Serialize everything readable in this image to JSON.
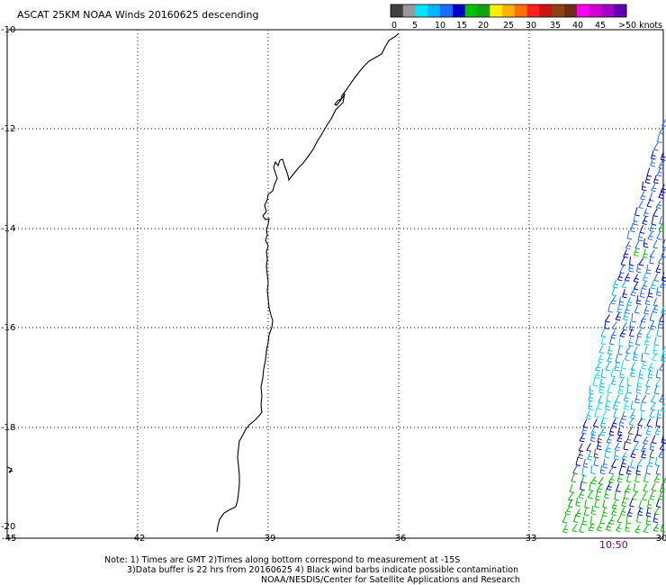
{
  "title": "ASCAT 25KM NOAA Winds 20160625 descending",
  "colorbar": {
    "colors": [
      "#404040",
      "#999999",
      "#00e5ff",
      "#00b4ff",
      "#1f6aff",
      "#0000c8",
      "#00c000",
      "#14a014",
      "#ffee00",
      "#ffb000",
      "#ff7000",
      "#ff2020",
      "#c81414",
      "#8b4513",
      "#6b2e1a",
      "#ff00ff",
      "#d400d4",
      "#a000c8",
      "#6000b0"
    ],
    "labels": [
      "0",
      "5",
      "10",
      "15",
      "20",
      "25",
      "30",
      "35",
      "40",
      "45",
      ">50 knots"
    ]
  },
  "axes": {
    "lat_labels": [
      "-10",
      "-12",
      "-14",
      "-16",
      "-18",
      "-20"
    ],
    "lon_labels": [
      "-45",
      "-42",
      "-39",
      "-36",
      "-33",
      "-30"
    ],
    "lon_range": [
      -45,
      -30
    ],
    "lat_range": [
      -10,
      -20
    ]
  },
  "swath_time": "10:50",
  "notes": {
    "line1": "Note: 1) Times are GMT 2)Times along bottom correspond to measurement at -15S",
    "line2": "3)Data buffer is 22 hrs from 20160625 4) Black wind barbs indicate possible contamination",
    "line3": "NOAA/NESDIS/Center for Satellite Applications and Research"
  }
}
